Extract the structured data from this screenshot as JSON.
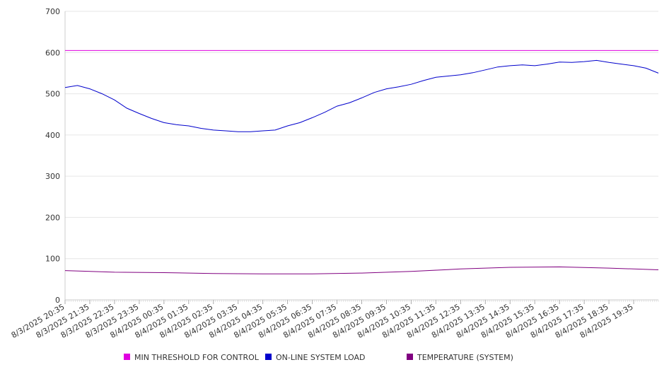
{
  "chart_data": {
    "type": "line",
    "title": "",
    "xlabel": "",
    "ylabel": "",
    "ylim": [
      0,
      700
    ],
    "y_ticks": [
      0,
      100,
      200,
      300,
      400,
      500,
      600,
      700
    ],
    "grid": true,
    "legend_position": "bottom",
    "x_tick_labels": [
      "8/3/2025 20:35",
      "8/3/2025 21:35",
      "8/3/2025 22:35",
      "8/3/2025 23:35",
      "8/4/2025 00:35",
      "8/4/2025 01:35",
      "8/4/2025 02:35",
      "8/4/2025 03:35",
      "8/4/2025 04:35",
      "8/4/2025 05:35",
      "8/4/2025 06:35",
      "8/4/2025 07:35",
      "8/4/2025 08:35",
      "8/4/2025 09:35",
      "8/4/2025 10:35",
      "8/4/2025 11:35",
      "8/4/2025 12:35",
      "8/4/2025 13:35",
      "8/4/2025 14:35",
      "8/4/2025 15:35",
      "8/4/2025 16:35",
      "8/4/2025 17:35",
      "8/4/2025 18:35",
      "8/4/2025 19:35"
    ],
    "x_range": [
      "8/3/2025 20:35",
      "8/4/2025 20:35"
    ],
    "series": [
      {
        "name": "MIN THRESHOLD FOR CONTROL",
        "color": "#e000e0",
        "x": [
          "8/3/2025 20:35",
          "8/4/2025 20:35"
        ],
        "y": [
          605,
          605
        ]
      },
      {
        "name": "ON-LINE SYSTEM LOAD",
        "color": "#0000cc",
        "x": [
          "8/3/2025 20:35",
          "8/3/2025 21:05",
          "8/3/2025 21:35",
          "8/3/2025 22:05",
          "8/3/2025 22:35",
          "8/3/2025 23:05",
          "8/3/2025 23:35",
          "8/4/2025 00:05",
          "8/4/2025 00:35",
          "8/4/2025 01:05",
          "8/4/2025 01:35",
          "8/4/2025 02:05",
          "8/4/2025 02:35",
          "8/4/2025 03:05",
          "8/4/2025 03:35",
          "8/4/2025 04:05",
          "8/4/2025 04:35",
          "8/4/2025 05:05",
          "8/4/2025 05:35",
          "8/4/2025 06:05",
          "8/4/2025 06:35",
          "8/4/2025 07:05",
          "8/4/2025 07:35",
          "8/4/2025 08:05",
          "8/4/2025 08:35",
          "8/4/2025 09:05",
          "8/4/2025 09:35",
          "8/4/2025 10:05",
          "8/4/2025 10:35",
          "8/4/2025 11:05",
          "8/4/2025 11:35",
          "8/4/2025 12:05",
          "8/4/2025 12:35",
          "8/4/2025 13:05",
          "8/4/2025 13:35",
          "8/4/2025 14:05",
          "8/4/2025 14:35",
          "8/4/2025 15:05",
          "8/4/2025 15:35",
          "8/4/2025 16:05",
          "8/4/2025 16:35",
          "8/4/2025 17:05",
          "8/4/2025 17:35",
          "8/4/2025 18:05",
          "8/4/2025 18:35",
          "8/4/2025 19:05",
          "8/4/2025 19:35",
          "8/4/2025 20:05",
          "8/4/2025 20:35"
        ],
        "y": [
          515,
          520,
          512,
          500,
          485,
          465,
          452,
          440,
          430,
          425,
          422,
          416,
          412,
          410,
          408,
          408,
          410,
          412,
          422,
          430,
          442,
          455,
          470,
          478,
          490,
          503,
          512,
          517,
          523,
          532,
          540,
          543,
          546,
          551,
          558,
          565,
          568,
          570,
          568,
          572,
          577,
          576,
          578,
          581,
          576,
          572,
          568,
          562,
          550
        ]
      },
      {
        "name": "TEMPERATURE (SYSTEM)",
        "color": "#800080",
        "x": [
          "8/3/2025 20:35",
          "8/3/2025 22:35",
          "8/4/2025 00:35",
          "8/4/2025 02:35",
          "8/4/2025 04:35",
          "8/4/2025 06:35",
          "8/4/2025 08:35",
          "8/4/2025 10:35",
          "8/4/2025 12:35",
          "8/4/2025 14:35",
          "8/4/2025 16:35",
          "8/4/2025 18:35",
          "8/4/2025 20:35"
        ],
        "y": [
          71,
          67,
          66,
          64,
          63,
          63,
          65,
          69,
          75,
          79,
          80,
          77,
          73
        ]
      }
    ]
  }
}
